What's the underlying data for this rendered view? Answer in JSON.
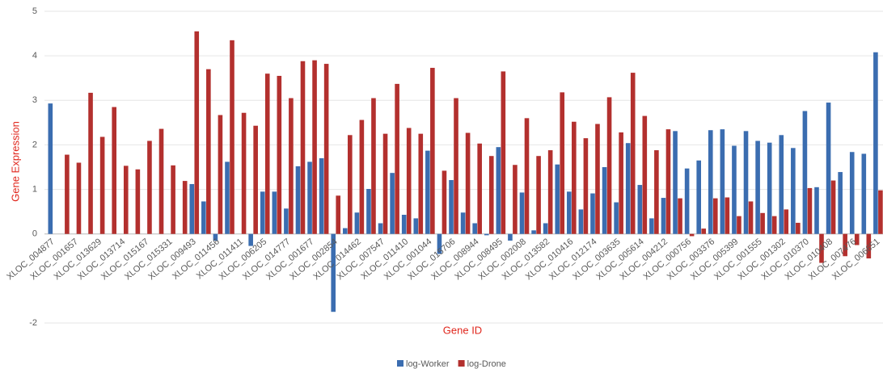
{
  "chart_data": {
    "type": "bar",
    "x_label": "Gene ID",
    "y_label": "Gene Expression",
    "categories": [
      "XLOC_004877",
      null,
      "XLOC_001657",
      null,
      "XLOC_013629",
      null,
      "XLOC_013714",
      null,
      "XLOC_015167",
      null,
      "XLOC_015331",
      null,
      "XLOC_009493",
      null,
      "XLOC_011456",
      null,
      "XLOC_011411",
      null,
      "XLOC_006205",
      null,
      "XLOC_014777",
      null,
      "XLOC_001677",
      null,
      "XLOC_002854",
      null,
      "XLOC_014462",
      null,
      "XLOC_007547",
      null,
      "XLOC_011410",
      null,
      "XLOC_001044",
      null,
      "XLOC_015706",
      null,
      "XLOC_008944",
      null,
      "XLOC_008495",
      null,
      "XLOC_002008",
      null,
      "XLOC_013582",
      null,
      "XLOC_010416",
      null,
      "XLOC_012174",
      null,
      "XLOC_003635",
      null,
      "XLOC_005614",
      null,
      "XLOC_004212",
      null,
      "XLOC_000756",
      null,
      "XLOC_003376",
      null,
      "XLOC_005399",
      null,
      "XLOC_001555",
      null,
      "XLOC_001302",
      null,
      "XLOC_010370",
      null,
      "XLOC_010408",
      null,
      "XLOC_007476",
      null,
      "XLOC_006651"
    ],
    "series": [
      {
        "name": "log-Worker",
        "color": "#3b6db0",
        "values": [
          2.93,
          0,
          0,
          0,
          0,
          0,
          0,
          0,
          0,
          0,
          0,
          0,
          1.12,
          0.73,
          -0.15,
          1.62,
          0,
          -0.27,
          0.95,
          0.95,
          0.57,
          1.52,
          1.62,
          1.7,
          -1.75,
          0.13,
          0.48,
          1.01,
          0.24,
          1.37,
          0.43,
          0.35,
          1.87,
          -0.45,
          1.21,
          0.48,
          0.24,
          -0.03,
          1.95,
          -0.15,
          0.93,
          0.08,
          0.24,
          1.56,
          0.95,
          0.55,
          0.91,
          1.5,
          0.71,
          2.04,
          1.1,
          0.35,
          0.81,
          2.31,
          1.47,
          1.65,
          2.33,
          2.35,
          1.98,
          2.31,
          2.09,
          2.05,
          2.22,
          1.93,
          2.76,
          1.05,
          2.95,
          1.39,
          1.84,
          1.8,
          4.08
        ]
      },
      {
        "name": "log-Drone",
        "color": "#b3302e",
        "values": [
          0,
          1.78,
          1.6,
          3.17,
          2.18,
          2.85,
          1.53,
          1.45,
          2.09,
          2.36,
          1.54,
          1.19,
          4.55,
          3.7,
          2.67,
          4.35,
          2.72,
          2.43,
          3.6,
          3.55,
          3.05,
          3.88,
          3.9,
          3.82,
          0.86,
          2.22,
          2.56,
          3.05,
          2.25,
          3.37,
          2.38,
          2.25,
          3.73,
          1.42,
          3.05,
          2.27,
          2.03,
          1.75,
          3.65,
          1.55,
          2.6,
          1.75,
          1.88,
          3.18,
          2.52,
          2.15,
          2.47,
          3.07,
          2.28,
          3.62,
          2.65,
          1.88,
          2.35,
          0.8,
          -0.05,
          0.12,
          0.8,
          0.82,
          0.4,
          0.73,
          0.47,
          0.4,
          0.55,
          0.25,
          1.03,
          -0.65,
          1.2,
          -0.5,
          -0.25,
          -0.55,
          0.98
        ]
      }
    ],
    "ylim": [
      -2,
      5
    ],
    "yticks": [
      -2,
      0,
      1,
      2,
      3,
      4,
      5
    ],
    "grid": true,
    "legend": "bottom"
  }
}
